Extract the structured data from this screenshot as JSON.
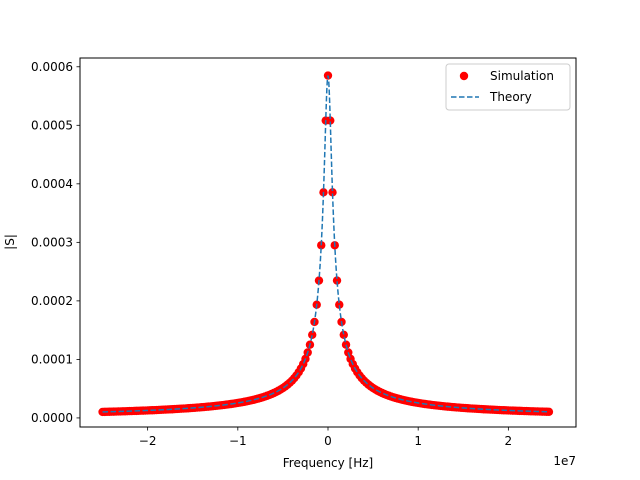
{
  "chart_data": {
    "type": "line",
    "title": "",
    "xlabel": "Frequency [Hz]",
    "ylabel": "|S|",
    "x_offset_text": "1e7",
    "xlim": [
      -2.75,
      2.75
    ],
    "ylim": [
      -1.55e-05,
      0.000615
    ],
    "x_scale_factor": 10000000,
    "x_ticks": [
      -2,
      -1,
      0,
      1,
      2
    ],
    "x_tick_labels": [
      "−2",
      "−1",
      "0",
      "1",
      "2"
    ],
    "y_ticks": [
      0,
      0.0001,
      0.0002,
      0.0003,
      0.0004,
      0.0005,
      0.0006
    ],
    "y_tick_labels": [
      "0.0000",
      "0.0001",
      "0.0002",
      "0.0003",
      "0.0004",
      "0.0005",
      "0.0006"
    ],
    "grid": false,
    "legend_position": "top-right",
    "series": [
      {
        "name": "Simulation",
        "style": "markers",
        "color": "#ff0000",
        "x_min": -2.5,
        "x_max": 2.45,
        "points": 199,
        "model": {
          "peak": 0.000585,
          "half_width": 0.0438,
          "unit_x": "1e7 Hz"
        }
      },
      {
        "name": "Theory",
        "style": "dashed",
        "color": "#1f77b4",
        "x_min": -2.5,
        "x_max": 2.45,
        "model": {
          "peak": 0.000585,
          "half_width": 0.0438,
          "unit_x": "1e7 Hz"
        }
      }
    ]
  }
}
